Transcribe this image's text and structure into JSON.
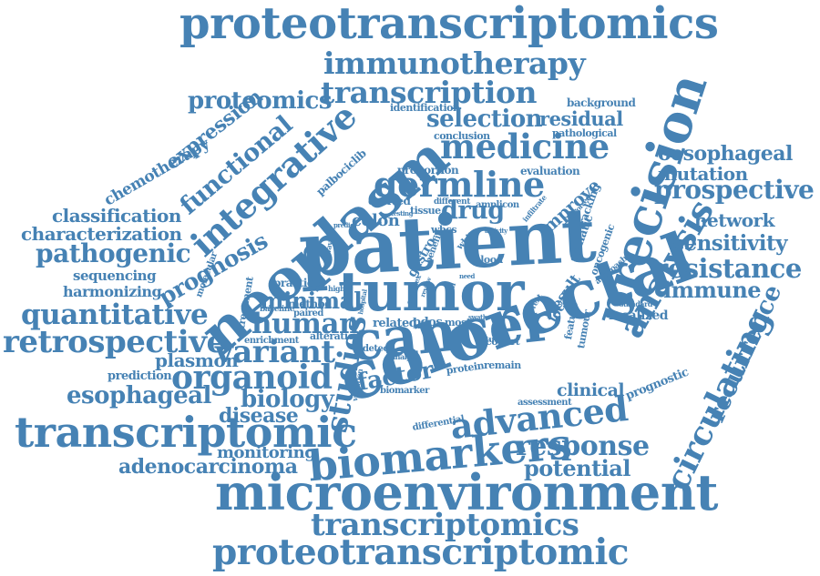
{
  "color": "#4682b4",
  "words": [
    "proteotranscriptomics",
    "immunotherapy",
    "transcription",
    "proteomics",
    "selection",
    "residual",
    "background",
    "identification",
    "medicine",
    "conclusion",
    "pathological",
    "oesophageal",
    "mutation",
    "expression",
    "chemotherapy",
    "functional",
    "integrative",
    "neoplasm",
    "germline",
    "precision",
    "prospective",
    "proportion",
    "evaluation",
    "palbociclib",
    "derived",
    "drug",
    "classification",
    "characterization",
    "prognosis",
    "colon",
    "improve",
    "network",
    "analysis",
    "patient",
    "sensitivity",
    "pathogenic",
    "resistance",
    "sequencing",
    "harmonizing",
    "tumor",
    "immune",
    "quantitative",
    "minimal",
    "human",
    "cancer",
    "recurrence",
    "retrospective",
    "variant",
    "colorectal",
    "circulating",
    "plasmon",
    "organoid",
    "studies",
    "prediction",
    "factor",
    "clinical",
    "esophageal",
    "biology",
    "disease",
    "transcriptomic",
    "advanced",
    "biomarkers",
    "response",
    "monitoring",
    "adenocarcinoma",
    "potential",
    "microenvironment",
    "transcriptomics",
    "proteotranscriptomic",
    "gastro",
    "wbcs",
    "tissue",
    "blood",
    "localized",
    "prognostic",
    "assessment",
    "differential",
    "biomarker",
    "treatment",
    "molecular",
    "practice",
    "alteration",
    "enrichment",
    "paired",
    "method",
    "baseline",
    "related",
    "pdos",
    "most",
    "detect",
    "cohort",
    "study",
    "protein",
    "remain",
    "feature",
    "tumour",
    "result",
    "local",
    "oncogenic",
    "approach",
    "somatic",
    "tracking",
    "amplicon",
    "benefit",
    "white",
    "different",
    "testing",
    "standard",
    "current",
    "involved",
    "infiltrate",
    "predict",
    "activity",
    "complex",
    "pathway",
    "cell",
    "higher",
    "variation",
    "analyse",
    "review",
    "need",
    "swath",
    "hospital"
  ]
}
